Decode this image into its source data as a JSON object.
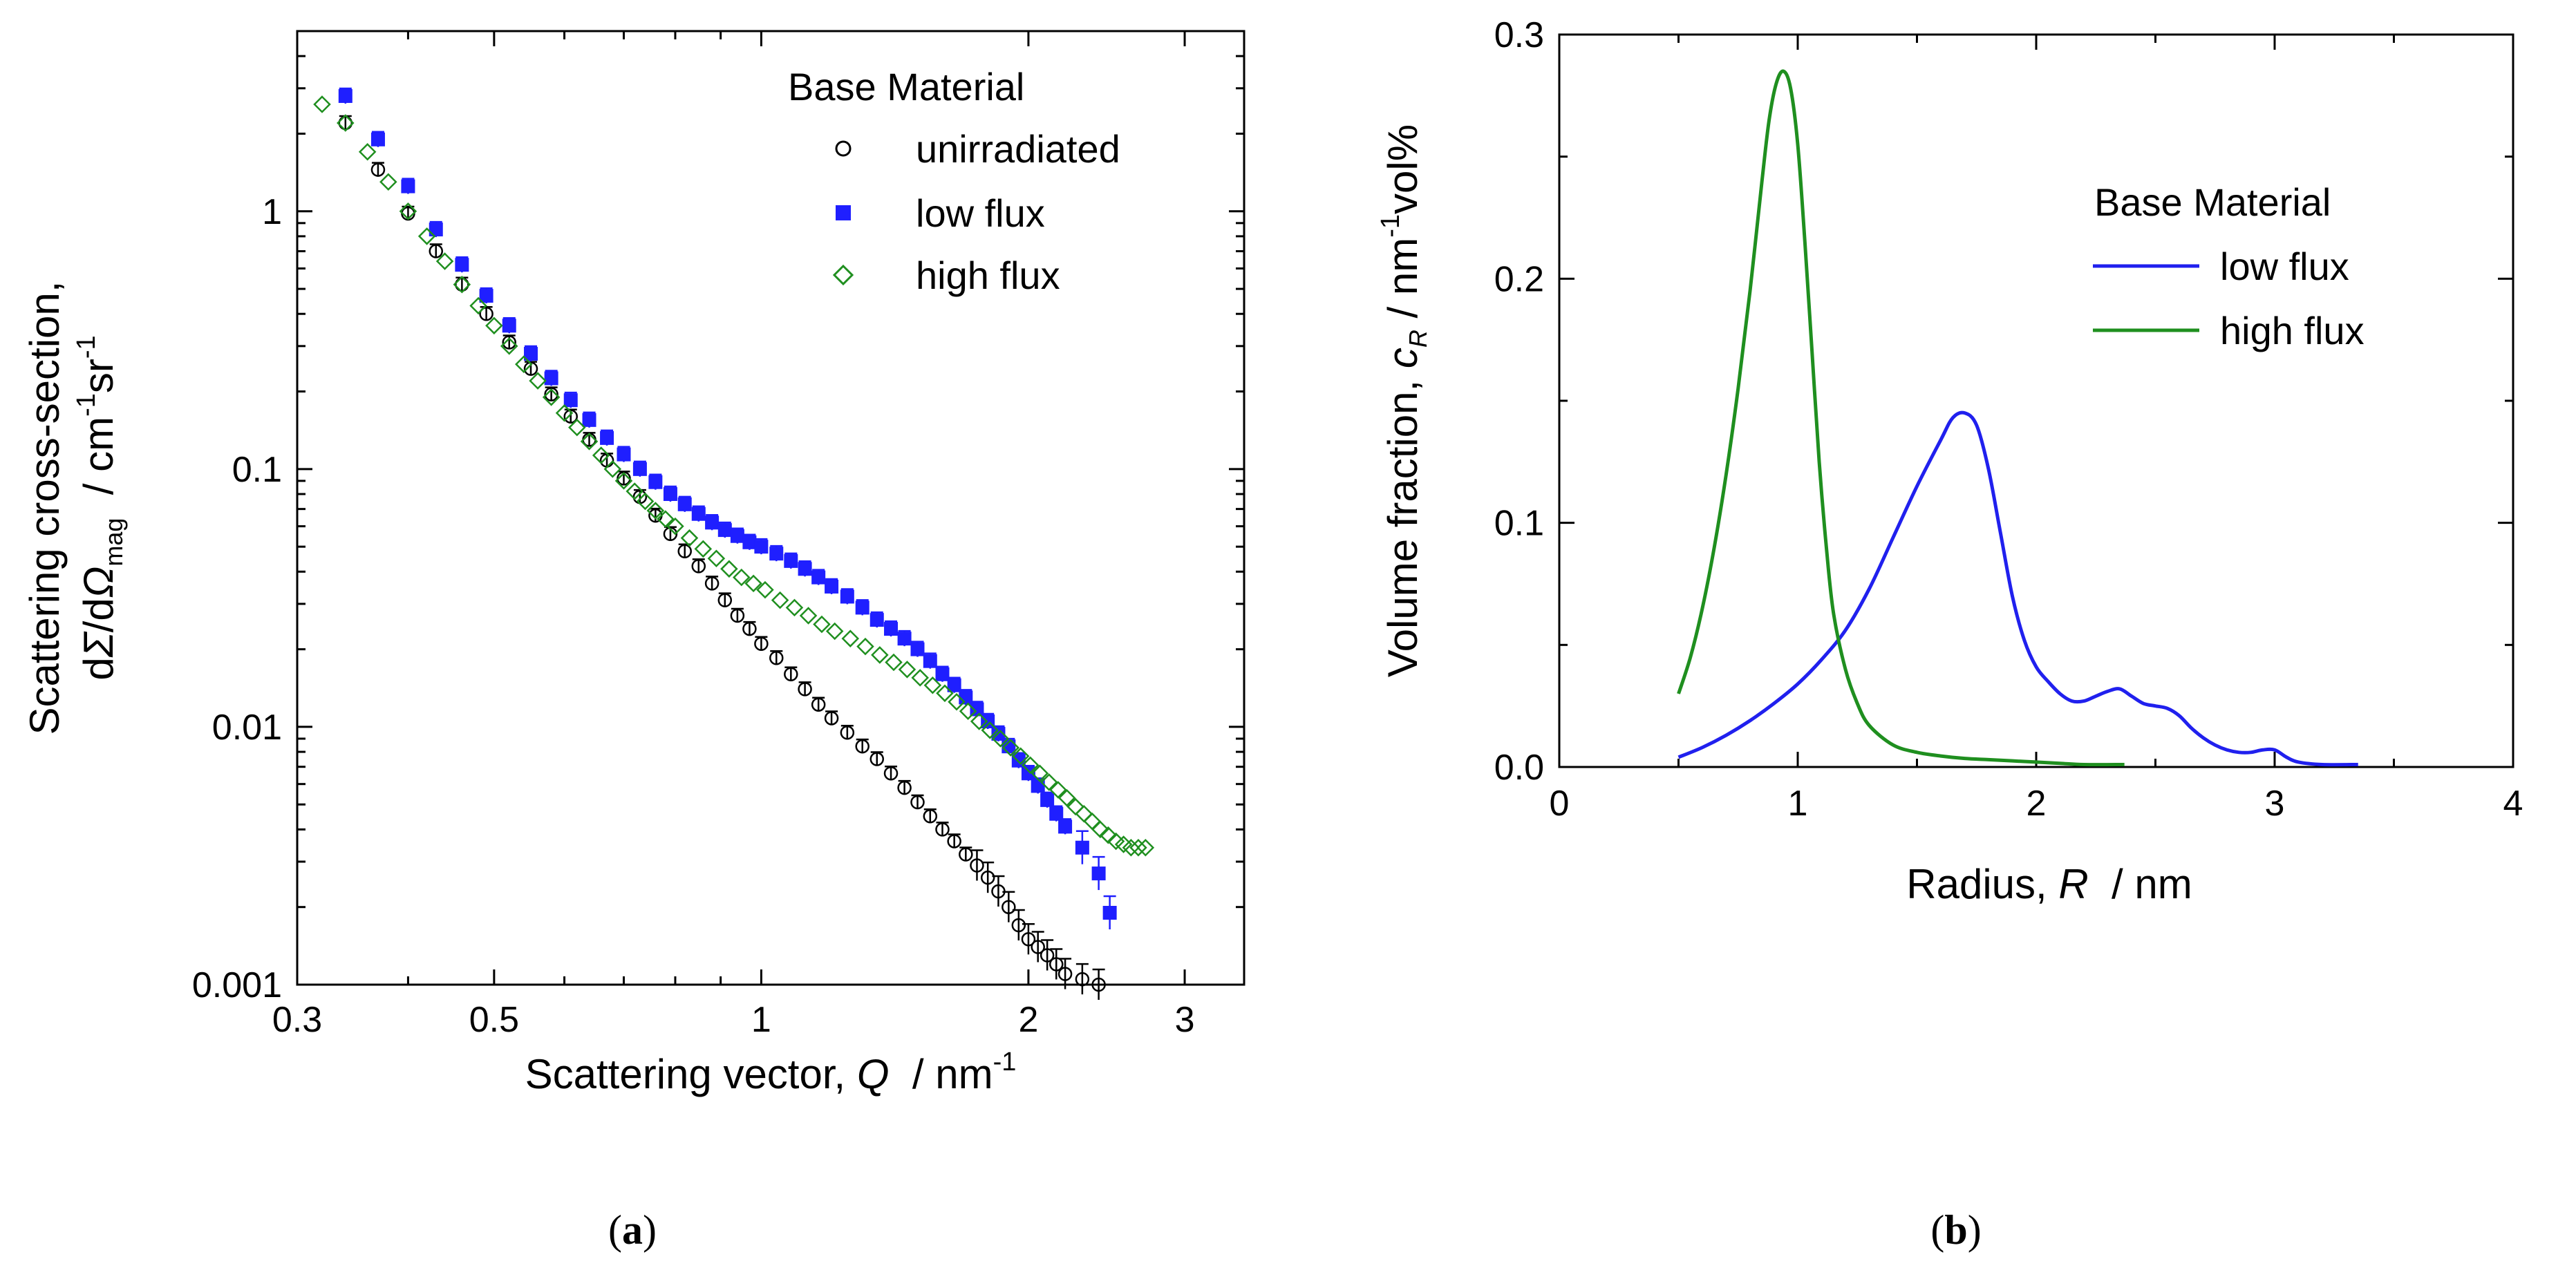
{
  "chart_data": [
    {
      "id": "a",
      "type": "scatter",
      "xscale": "log",
      "yscale": "log",
      "xlim": [
        0.3,
        3.5
      ],
      "ylim": [
        0.001,
        5
      ],
      "xticks": [
        {
          "v": 0.3,
          "label": "0.3"
        },
        {
          "v": 0.5,
          "label": "0.5"
        },
        {
          "v": 1,
          "label": "1"
        },
        {
          "v": 2,
          "label": "2"
        },
        {
          "v": 3,
          "label": "3"
        }
      ],
      "yticks": [
        {
          "v": 0.001,
          "label": "0.001"
        },
        {
          "v": 0.01,
          "label": "0.01"
        },
        {
          "v": 0.1,
          "label": "0.1"
        },
        {
          "v": 1,
          "label": "1"
        }
      ],
      "xlabel": {
        "pre": "Scattering vector, ",
        "var": "Q",
        "unit": "  / nm",
        "sup": "-1"
      },
      "ylabel": {
        "line1": "Scattering cross-section,",
        "pre": "d",
        "s1": "Σ",
        "mid": "/d",
        "s2": "Ω",
        "sub": "mag",
        "unit": "  / cm",
        "sup1": "-1",
        "sr": "sr",
        "sup2": "-1"
      },
      "legend_title": "Base Material",
      "series": [
        {
          "name": "unirradiated",
          "marker": "open-circle",
          "color": "#000000",
          "x": [
            0.34,
            0.37,
            0.4,
            0.43,
            0.46,
            0.49,
            0.52,
            0.55,
            0.58,
            0.61,
            0.64,
            0.67,
            0.7,
            0.73,
            0.76,
            0.79,
            0.82,
            0.85,
            0.88,
            0.91,
            0.94,
            0.97,
            1.0,
            1.04,
            1.08,
            1.12,
            1.16,
            1.2,
            1.25,
            1.3,
            1.35,
            1.4,
            1.45,
            1.5,
            1.55,
            1.6,
            1.65,
            1.7,
            1.75,
            1.8,
            1.85,
            1.9,
            1.95,
            2.0,
            2.05,
            2.1,
            2.15,
            2.2,
            2.3,
            2.4
          ],
          "y": [
            2.2,
            1.45,
            0.98,
            0.7,
            0.52,
            0.4,
            0.31,
            0.245,
            0.195,
            0.16,
            0.13,
            0.108,
            0.092,
            0.078,
            0.066,
            0.056,
            0.048,
            0.042,
            0.036,
            0.031,
            0.027,
            0.024,
            0.021,
            0.0185,
            0.016,
            0.014,
            0.0122,
            0.0108,
            0.0095,
            0.0084,
            0.0075,
            0.0066,
            0.0058,
            0.0051,
            0.0045,
            0.004,
            0.0036,
            0.0032,
            0.0029,
            0.0026,
            0.0023,
            0.002,
            0.0017,
            0.0015,
            0.0014,
            0.0013,
            0.0012,
            0.0011,
            0.00105,
            0.001
          ]
        },
        {
          "name": "low flux",
          "marker": "filled-square",
          "color": "#1f1fff",
          "x": [
            0.34,
            0.37,
            0.4,
            0.43,
            0.46,
            0.49,
            0.52,
            0.55,
            0.58,
            0.61,
            0.64,
            0.67,
            0.7,
            0.73,
            0.76,
            0.79,
            0.82,
            0.85,
            0.88,
            0.91,
            0.94,
            0.97,
            1.0,
            1.04,
            1.08,
            1.12,
            1.16,
            1.2,
            1.25,
            1.3,
            1.35,
            1.4,
            1.45,
            1.5,
            1.55,
            1.6,
            1.65,
            1.7,
            1.75,
            1.8,
            1.85,
            1.9,
            1.95,
            2.0,
            2.05,
            2.1,
            2.15,
            2.2,
            2.3,
            2.4,
            2.47
          ],
          "y": [
            2.8,
            1.9,
            1.25,
            0.85,
            0.62,
            0.47,
            0.36,
            0.28,
            0.225,
            0.185,
            0.155,
            0.132,
            0.114,
            0.1,
            0.089,
            0.08,
            0.073,
            0.067,
            0.062,
            0.058,
            0.055,
            0.052,
            0.05,
            0.047,
            0.044,
            0.041,
            0.038,
            0.035,
            0.032,
            0.029,
            0.026,
            0.024,
            0.022,
            0.02,
            0.018,
            0.016,
            0.0145,
            0.013,
            0.0117,
            0.0105,
            0.0094,
            0.0084,
            0.0074,
            0.0066,
            0.0059,
            0.0052,
            0.0046,
            0.0041,
            0.0034,
            0.0027,
            0.0019
          ]
        },
        {
          "name": "high flux",
          "marker": "open-diamond",
          "color": "#1f8f1f",
          "x": [
            0.32,
            0.34,
            0.36,
            0.38,
            0.4,
            0.42,
            0.44,
            0.46,
            0.48,
            0.5,
            0.52,
            0.54,
            0.56,
            0.58,
            0.6,
            0.62,
            0.64,
            0.66,
            0.68,
            0.7,
            0.72,
            0.74,
            0.76,
            0.78,
            0.8,
            0.83,
            0.86,
            0.89,
            0.92,
            0.95,
            0.98,
            1.01,
            1.05,
            1.09,
            1.13,
            1.17,
            1.21,
            1.26,
            1.31,
            1.36,
            1.41,
            1.46,
            1.51,
            1.56,
            1.61,
            1.66,
            1.71,
            1.76,
            1.81,
            1.86,
            1.91,
            1.96,
            2.01,
            2.06,
            2.11,
            2.16,
            2.21,
            2.26,
            2.31,
            2.36,
            2.41,
            2.46,
            2.51,
            2.56,
            2.61,
            2.66,
            2.71
          ],
          "y": [
            2.6,
            2.2,
            1.7,
            1.3,
            1.0,
            0.8,
            0.64,
            0.52,
            0.43,
            0.36,
            0.3,
            0.255,
            0.22,
            0.19,
            0.165,
            0.145,
            0.128,
            0.113,
            0.1,
            0.09,
            0.082,
            0.075,
            0.069,
            0.064,
            0.06,
            0.054,
            0.049,
            0.045,
            0.041,
            0.038,
            0.036,
            0.034,
            0.031,
            0.029,
            0.027,
            0.025,
            0.0235,
            0.022,
            0.0205,
            0.019,
            0.0178,
            0.0167,
            0.0155,
            0.0145,
            0.0135,
            0.0125,
            0.0115,
            0.0105,
            0.0097,
            0.009,
            0.0083,
            0.0077,
            0.0071,
            0.0066,
            0.0061,
            0.0057,
            0.0053,
            0.0049,
            0.0046,
            0.0043,
            0.004,
            0.0038,
            0.0036,
            0.0035,
            0.0034,
            0.0034,
            0.0034
          ]
        }
      ]
    },
    {
      "id": "b",
      "type": "line",
      "xlim": [
        0,
        4
      ],
      "ylim": [
        0,
        0.3
      ],
      "xticks": [
        {
          "v": 0,
          "label": "0"
        },
        {
          "v": 1,
          "label": "1"
        },
        {
          "v": 2,
          "label": "2"
        },
        {
          "v": 3,
          "label": "3"
        },
        {
          "v": 4,
          "label": "4"
        }
      ],
      "yticks": [
        {
          "v": 0,
          "label": "0.0"
        },
        {
          "v": 0.1,
          "label": "0.1"
        },
        {
          "v": 0.2,
          "label": "0.2"
        },
        {
          "v": 0.3,
          "label": "0.3"
        }
      ],
      "xlabel": {
        "pre": "Radius, ",
        "var": "R",
        "unit": "  / nm"
      },
      "ylabel": {
        "pre": "Volume fraction, ",
        "var": "c",
        "sub": "R",
        "unit": " / nm",
        "sup1": "-1",
        "vol": "vol%"
      },
      "legend_title": "Base Material",
      "series": [
        {
          "name": "low flux",
          "color": "#2020ee",
          "x": [
            0.5,
            0.6,
            0.7,
            0.8,
            0.9,
            1.0,
            1.1,
            1.2,
            1.3,
            1.4,
            1.5,
            1.6,
            1.65,
            1.7,
            1.75,
            1.8,
            1.85,
            1.9,
            1.95,
            2.0,
            2.05,
            2.1,
            2.15,
            2.2,
            2.25,
            2.3,
            2.35,
            2.4,
            2.45,
            2.5,
            2.55,
            2.6,
            2.65,
            2.7,
            2.75,
            2.8,
            2.85,
            2.9,
            2.95,
            3.0,
            3.05,
            3.1,
            3.2,
            3.35
          ],
          "y": [
            0.004,
            0.008,
            0.013,
            0.019,
            0.026,
            0.034,
            0.044,
            0.056,
            0.073,
            0.094,
            0.115,
            0.134,
            0.143,
            0.145,
            0.14,
            0.122,
            0.096,
            0.07,
            0.052,
            0.041,
            0.035,
            0.03,
            0.027,
            0.027,
            0.029,
            0.031,
            0.032,
            0.029,
            0.026,
            0.025,
            0.024,
            0.021,
            0.016,
            0.012,
            0.009,
            0.007,
            0.006,
            0.006,
            0.007,
            0.007,
            0.004,
            0.002,
            0.001,
            0.001
          ]
        },
        {
          "name": "high flux",
          "color": "#1f8f1f",
          "x": [
            0.5,
            0.55,
            0.6,
            0.65,
            0.7,
            0.75,
            0.8,
            0.85,
            0.88,
            0.91,
            0.94,
            0.97,
            1.0,
            1.03,
            1.06,
            1.09,
            1.12,
            1.15,
            1.2,
            1.25,
            1.3,
            1.4,
            1.5,
            1.6,
            1.7,
            1.8,
            1.9,
            2.0,
            2.1,
            2.2,
            2.37
          ],
          "y": [
            0.03,
            0.045,
            0.065,
            0.09,
            0.12,
            0.155,
            0.195,
            0.24,
            0.265,
            0.28,
            0.285,
            0.278,
            0.255,
            0.215,
            0.17,
            0.125,
            0.09,
            0.063,
            0.04,
            0.026,
            0.017,
            0.009,
            0.006,
            0.0045,
            0.0035,
            0.003,
            0.0025,
            0.002,
            0.0015,
            0.001,
            0.001
          ]
        }
      ]
    }
  ],
  "panel_labels": {
    "a": "a",
    "b": "b"
  }
}
